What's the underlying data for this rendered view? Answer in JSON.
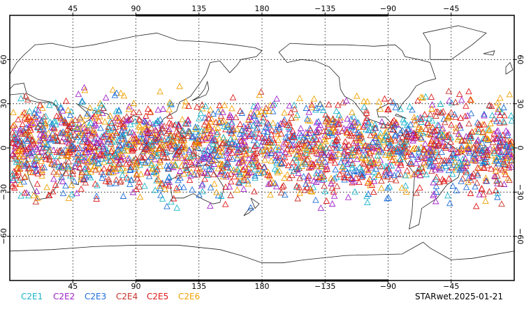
{
  "map_data": {
    "top_lon_labels": [
      "45",
      "90",
      "135",
      "180",
      "−135",
      "−90",
      "−45"
    ],
    "bottom_lon_labels": [
      "45",
      "90",
      "135",
      "180",
      "−135",
      "−90",
      "−45"
    ],
    "left_lat_labels": [
      "60",
      "30",
      "0",
      "−30",
      "−60"
    ],
    "right_lat_labels": [
      "60",
      "30",
      "0",
      "−30",
      "−60"
    ],
    "lon_range": [
      0,
      360
    ],
    "lat_range": [
      -90,
      90
    ],
    "gridlines": true,
    "marker": "triangle-outline",
    "series": [
      {
        "name": "C2E1",
        "color": "#18b4c8"
      },
      {
        "name": "C2E2",
        "color": "#a020c8"
      },
      {
        "name": "C2E3",
        "color": "#1e6ed8"
      },
      {
        "name": "C2E4",
        "color": "#c83228"
      },
      {
        "name": "C2E5",
        "color": "#e01818"
      },
      {
        "name": "C2E6",
        "color": "#f0a000"
      }
    ]
  },
  "label": "STARwet.2025-01-21"
}
